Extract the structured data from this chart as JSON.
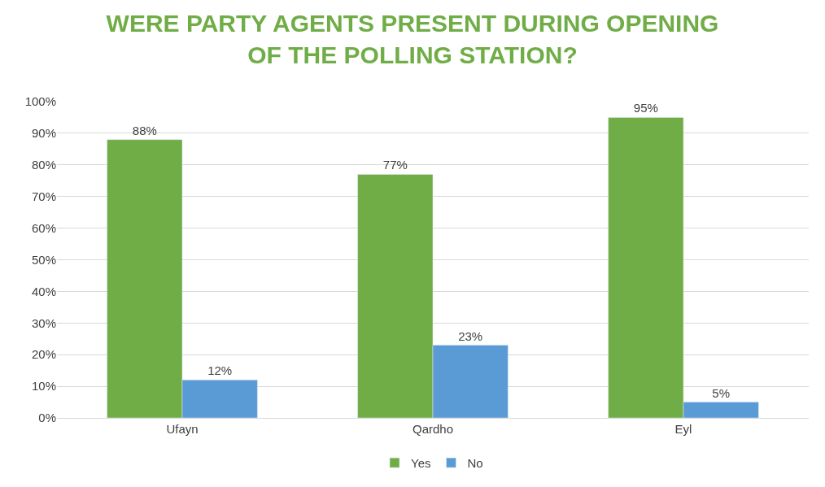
{
  "chart_data": {
    "type": "bar",
    "title": "WERE PARTY AGENTS PRESENT DURING OPENING OF THE POLLING STATION?",
    "categories": [
      "Ufayn",
      "Qardho",
      "Eyl"
    ],
    "series": [
      {
        "name": "Yes",
        "color": "#70ad47",
        "values": [
          88,
          77,
          95
        ],
        "value_labels": [
          "88%",
          "77%",
          "95%"
        ]
      },
      {
        "name": "No",
        "color": "#5b9bd5",
        "values": [
          12,
          23,
          5
        ],
        "value_labels": [
          "12%",
          "23%",
          "5%"
        ]
      }
    ],
    "ylim": [
      0,
      100
    ],
    "yticks": [
      {
        "value": 0,
        "label": "0%"
      },
      {
        "value": 10,
        "label": "10%"
      },
      {
        "value": 20,
        "label": "20%"
      },
      {
        "value": 30,
        "label": "30%"
      },
      {
        "value": 40,
        "label": "40%"
      },
      {
        "value": 50,
        "label": "50%"
      },
      {
        "value": 60,
        "label": "60%"
      },
      {
        "value": 70,
        "label": "70%"
      },
      {
        "value": 80,
        "label": "80%"
      },
      {
        "value": 90,
        "label": "90%"
      },
      {
        "value": 100,
        "label": "100%"
      }
    ],
    "grid": "y",
    "legend": "bottom"
  }
}
